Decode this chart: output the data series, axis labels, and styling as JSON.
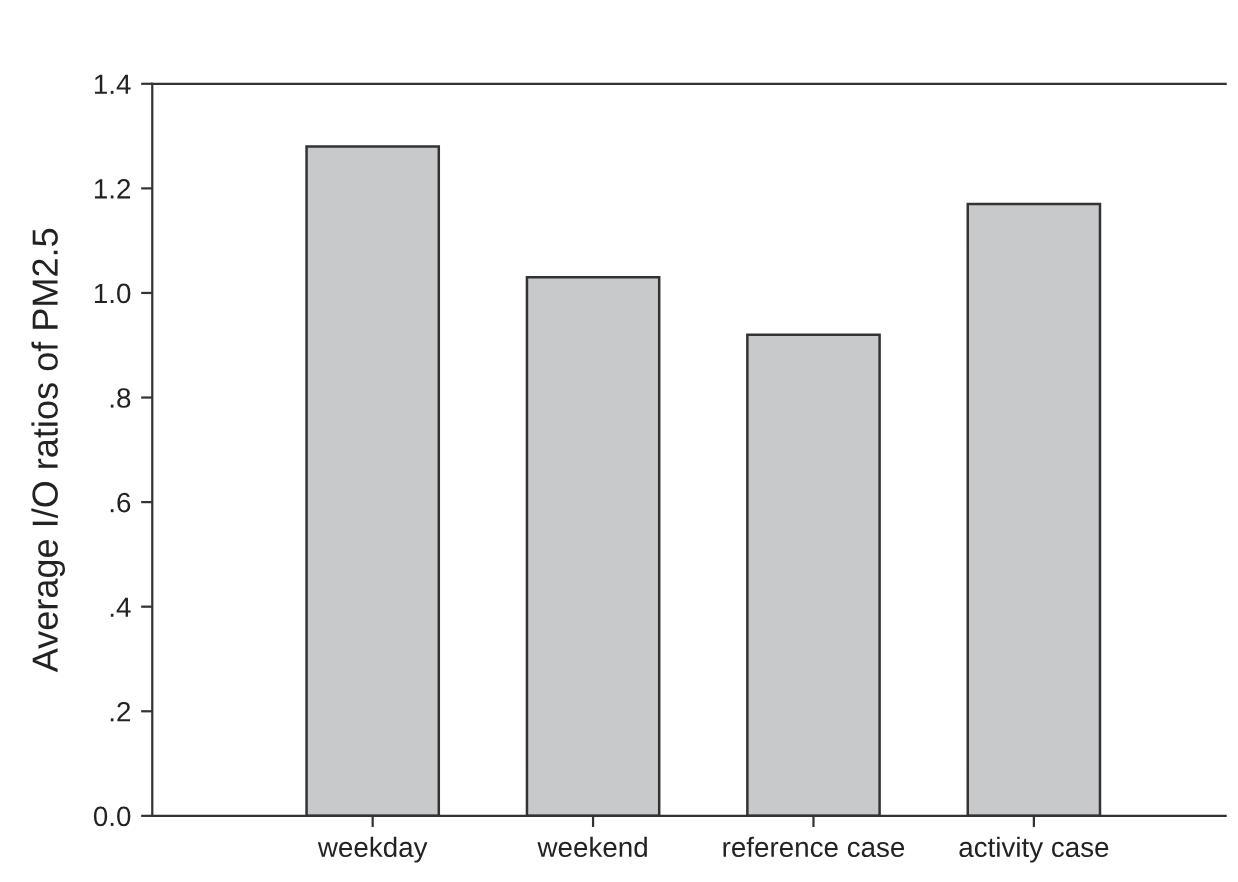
{
  "chart_data": {
    "type": "bar",
    "ylabel": "Average I/O ratios of PM2.5",
    "categories": [
      "weekday",
      "weekend",
      "reference case",
      "activity case"
    ],
    "values": [
      1.28,
      1.03,
      0.92,
      1.17
    ],
    "color": "#c8c9cb",
    "ylim": [
      0,
      1.4
    ],
    "yticks": [
      {
        "value": 0,
        "label": "0.0"
      },
      {
        "value": 0.2,
        "label": ".2"
      },
      {
        "value": 0.4,
        "label": ".4"
      },
      {
        "value": 0.6,
        "label": ".6"
      },
      {
        "value": 0.8,
        "label": ".8"
      },
      {
        "value": 1.0,
        "label": "1.0"
      },
      {
        "value": 1.2,
        "label": "1.2"
      },
      {
        "value": 1.4,
        "label": "1.4"
      }
    ],
    "grid": false,
    "legend": false
  }
}
